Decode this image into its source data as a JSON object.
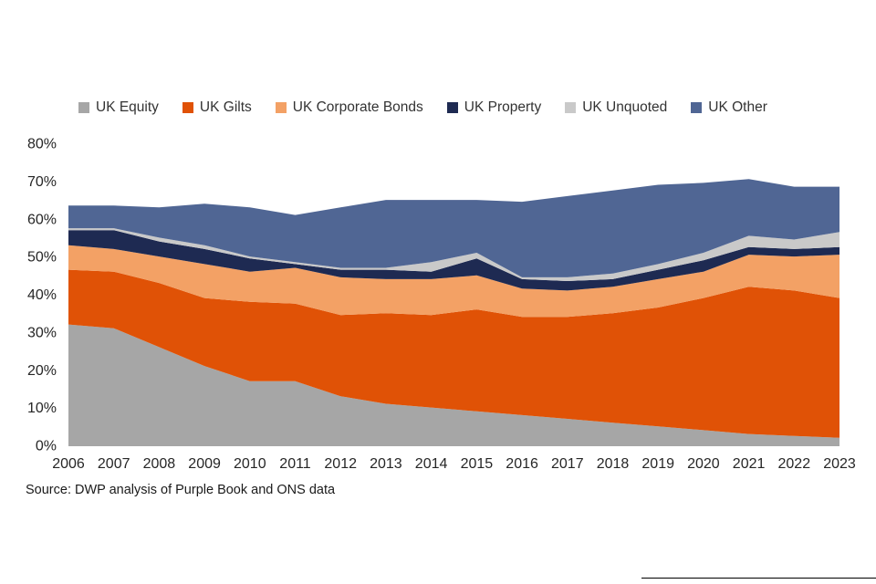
{
  "source": "Source: DWP analysis of Purple Book and ONS data",
  "chart_data": {
    "type": "area",
    "stacked": true,
    "x": [
      "2006",
      "2007",
      "2008",
      "2009",
      "2010",
      "2011",
      "2012",
      "2013",
      "2014",
      "2015",
      "2016",
      "2017",
      "2018",
      "2019",
      "2020",
      "2021",
      "2022",
      "2023"
    ],
    "xlabel": "",
    "ylabel": "",
    "ylim": [
      0,
      80
    ],
    "ytick_step": 10,
    "yticks": [
      "0%",
      "10%",
      "20%",
      "30%",
      "40%",
      "50%",
      "60%",
      "70%",
      "80%"
    ],
    "grid": false,
    "legend_position": "top",
    "axis_line_color": "#a6a6a6",
    "series": [
      {
        "name": "UK Equity",
        "color": "#a6a6a6",
        "values": [
          32,
          31,
          26,
          21,
          17,
          17,
          13,
          11,
          10,
          9,
          8,
          7,
          6,
          5,
          4,
          3,
          2.5,
          2
        ]
      },
      {
        "name": "UK Gilts",
        "color": "#e05206",
        "values": [
          14.5,
          15,
          17,
          18,
          21,
          20.5,
          21.5,
          24,
          24.5,
          27,
          26,
          27,
          29,
          31.5,
          35,
          39,
          38.5,
          37
        ]
      },
      {
        "name": "UK Corporate Bonds",
        "color": "#f3a165",
        "values": [
          6.5,
          6,
          7,
          9,
          8,
          9.5,
          10,
          9,
          9.5,
          9,
          7.5,
          7,
          7,
          7.5,
          7,
          8.5,
          9,
          11.5
        ]
      },
      {
        "name": "UK Property",
        "color": "#1e2a52",
        "values": [
          4,
          5,
          4,
          4,
          3.5,
          1,
          2,
          2.5,
          2,
          4.5,
          2.5,
          2.5,
          2,
          2.5,
          3,
          2,
          2,
          2
        ]
      },
      {
        "name": "UK Unquoted",
        "color": "#c9c9c9",
        "values": [
          0.5,
          0.5,
          1,
          1,
          0.5,
          0.5,
          0.5,
          0.5,
          2.5,
          1.5,
          0.5,
          1,
          1.5,
          1.5,
          2,
          3,
          2.5,
          4
        ]
      },
      {
        "name": "UK Other",
        "color": "#506694",
        "values": [
          6,
          6,
          8,
          11,
          13,
          12.5,
          16,
          18,
          16.5,
          14,
          20,
          21.5,
          22,
          21,
          18.5,
          15,
          14,
          12
        ]
      }
    ]
  }
}
